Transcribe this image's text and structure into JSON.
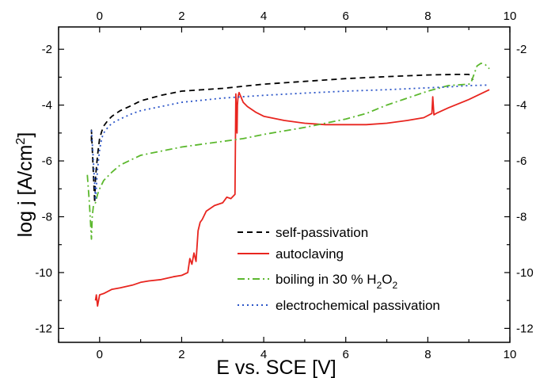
{
  "chart_data": {
    "type": "line",
    "xlabel": "E vs. SCE [V]",
    "ylabel_parts": [
      "log j [A/cm",
      "2",
      "]"
    ],
    "xlim": [
      -1,
      10
    ],
    "ylim": [
      -12.5,
      -1.2
    ],
    "x_ticks": [
      0,
      2,
      4,
      6,
      8,
      10
    ],
    "x_tick_labels": [
      "0",
      "2",
      "4",
      "6",
      "8",
      "10"
    ],
    "y_ticks": [
      -12,
      -10,
      -8,
      -6,
      -4,
      -2
    ],
    "y_tick_labels": [
      "-12",
      "-10",
      "-8",
      "-6",
      "-4",
      "-2"
    ],
    "top_tick_labels": [
      "0",
      "2",
      "4",
      "6",
      "8",
      "10"
    ],
    "right_tick_labels": [
      "-12",
      "-10",
      "-8",
      "-6",
      "-4",
      "-2"
    ],
    "grid": false,
    "legend_placement": "bottom-right",
    "legend_labels": {
      "self_passivation": "self-passivation",
      "autoclaving": "autoclaving",
      "boiling_main": "boiling in 30 % H",
      "boiling_sub1": "2",
      "boiling_mid": "O",
      "boiling_sub2": "2",
      "electrochemical": "electrochemical passivation"
    },
    "series": [
      {
        "key": "self_passivation",
        "color": "#000000",
        "dash": "7,5",
        "x": [
          -0.2,
          -0.2,
          -0.12,
          -0.1,
          -0.05,
          0.0,
          0.05,
          0.1,
          0.2,
          0.3,
          0.5,
          0.8,
          1.0,
          1.5,
          2.0,
          3.0,
          4.0,
          5.0,
          6.0,
          7.0,
          8.0,
          8.7,
          9.0,
          9.1
        ],
        "y": [
          -5.3,
          -4.9,
          -7.5,
          -6.6,
          -5.8,
          -5.2,
          -4.95,
          -4.75,
          -4.55,
          -4.4,
          -4.2,
          -4.0,
          -3.85,
          -3.65,
          -3.5,
          -3.4,
          -3.25,
          -3.15,
          -3.05,
          -2.98,
          -2.92,
          -2.9,
          -2.9,
          -3.1
        ]
      },
      {
        "key": "autoclaving",
        "color": "#e8251f",
        "dash": "",
        "x": [
          -0.1,
          -0.08,
          -0.05,
          0.0,
          0.1,
          0.3,
          0.5,
          0.8,
          1.0,
          1.2,
          1.5,
          1.8,
          2.0,
          2.15,
          2.2,
          2.25,
          2.3,
          2.35,
          2.4,
          2.45,
          2.5,
          2.6,
          2.8,
          3.0,
          3.1,
          3.2,
          3.3,
          3.32,
          3.35,
          3.36,
          3.37,
          3.38,
          3.4,
          3.5,
          3.6,
          3.8,
          4.0,
          4.5,
          5.0,
          5.5,
          6.0,
          6.5,
          7.0,
          7.5,
          7.9,
          8.1,
          8.12,
          8.15,
          8.2,
          8.5,
          9.0,
          9.5
        ],
        "y": [
          -11.0,
          -10.8,
          -11.2,
          -10.8,
          -10.75,
          -10.6,
          -10.55,
          -10.45,
          -10.35,
          -10.3,
          -10.25,
          -10.15,
          -10.1,
          -10.0,
          -9.5,
          -9.7,
          -9.3,
          -9.6,
          -8.5,
          -8.2,
          -8.1,
          -7.8,
          -7.6,
          -7.5,
          -7.3,
          -7.35,
          -7.2,
          -3.6,
          -5.0,
          -4.0,
          -3.8,
          -3.65,
          -3.55,
          -3.9,
          -4.05,
          -4.25,
          -4.4,
          -4.55,
          -4.65,
          -4.7,
          -4.7,
          -4.7,
          -4.65,
          -4.55,
          -4.45,
          -4.3,
          -3.7,
          -4.35,
          -4.3,
          -4.1,
          -3.8,
          -3.45
        ]
      },
      {
        "key": "boiling",
        "color": "#5cb82e",
        "dash": "9,4,2,4",
        "x": [
          -0.3,
          -0.25,
          -0.2,
          -0.18,
          -0.15,
          -0.1,
          -0.05,
          0.0,
          0.1,
          0.3,
          0.5,
          1.0,
          1.5,
          2.0,
          2.5,
          3.0,
          3.5,
          4.0,
          5.0,
          6.0,
          6.5,
          7.0,
          7.5,
          8.0,
          8.5,
          9.0,
          9.05,
          9.1,
          9.2,
          9.3,
          9.4,
          9.5
        ],
        "y": [
          -6.5,
          -7.5,
          -8.8,
          -8.0,
          -7.6,
          -7.5,
          -7.2,
          -7.0,
          -6.7,
          -6.4,
          -6.15,
          -5.8,
          -5.65,
          -5.5,
          -5.4,
          -5.3,
          -5.2,
          -5.05,
          -4.8,
          -4.5,
          -4.3,
          -4.0,
          -3.75,
          -3.5,
          -3.3,
          -3.25,
          -3.2,
          -3.0,
          -2.6,
          -2.5,
          -2.55,
          -2.7
        ]
      },
      {
        "key": "electrochemical",
        "color": "#2b55c8",
        "dash": "2,4",
        "x": [
          -0.2,
          -0.15,
          -0.1,
          -0.05,
          0.0,
          0.05,
          0.1,
          0.2,
          0.3,
          0.5,
          0.8,
          1.0,
          1.5,
          2.0,
          3.0,
          4.0,
          5.0,
          6.0,
          7.0,
          8.0,
          8.5,
          9.0,
          9.5
        ],
        "y": [
          -4.9,
          -6.0,
          -7.4,
          -6.3,
          -5.6,
          -5.2,
          -5.0,
          -4.8,
          -4.65,
          -4.5,
          -4.3,
          -4.2,
          -4.05,
          -3.9,
          -3.75,
          -3.65,
          -3.57,
          -3.5,
          -3.45,
          -3.38,
          -3.35,
          -3.3,
          -3.28
        ]
      }
    ]
  }
}
